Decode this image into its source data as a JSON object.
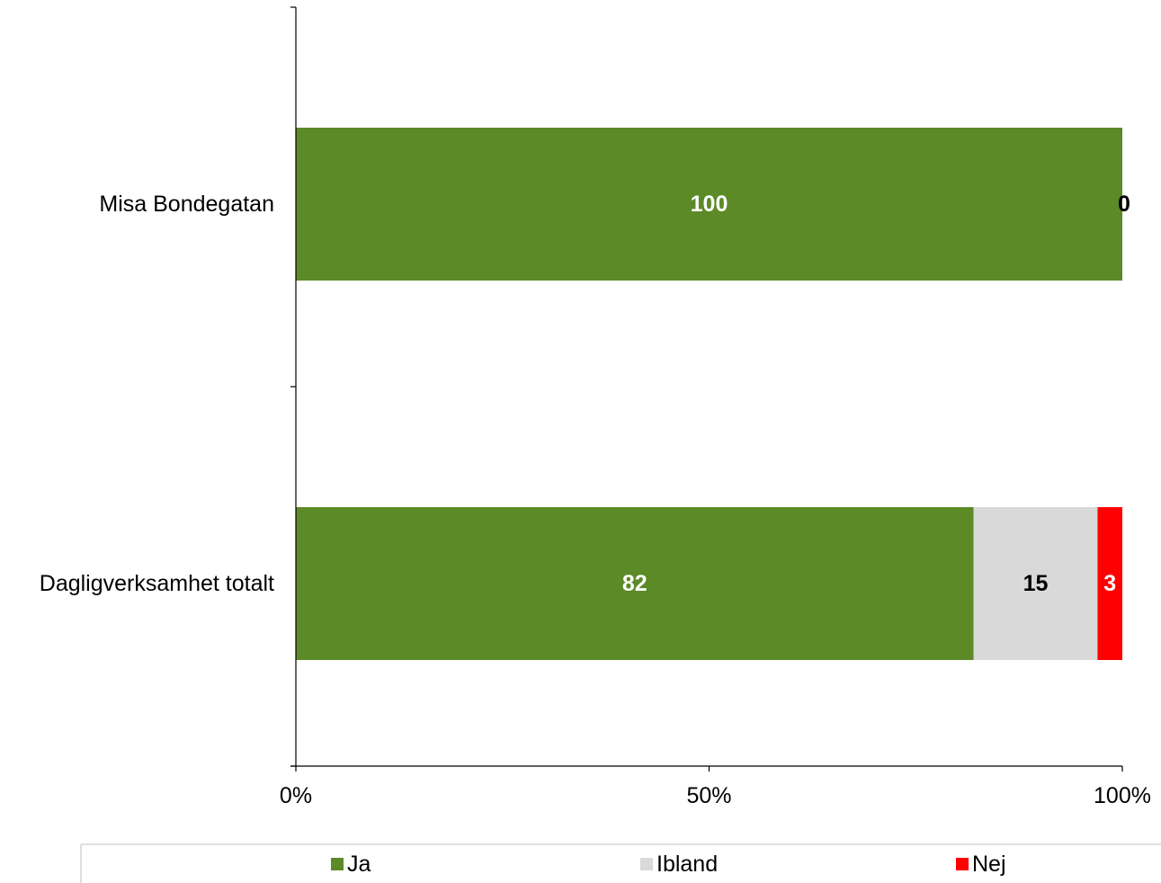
{
  "chart_data": {
    "type": "bar",
    "orientation": "horizontal",
    "stacked": true,
    "percent_stacked": true,
    "categories": [
      "Misa Bondegatan",
      "Dagligverksamhet totalt"
    ],
    "series": [
      {
        "name": "Ja",
        "color": "#5b8a27",
        "label_color": "#ffffff",
        "values": [
          100,
          82
        ]
      },
      {
        "name": "Ibland",
        "color": "#d9d9d9",
        "label_color": "#000000",
        "values": [
          0,
          15
        ]
      },
      {
        "name": "Nej",
        "color": "#ff0000",
        "label_color": "#ffffff",
        "values": [
          0,
          3
        ]
      }
    ],
    "x_ticks": [
      "0%",
      "50%",
      "100%"
    ],
    "xlim": [
      0,
      100
    ],
    "title": "",
    "xlabel": "",
    "ylabel": "",
    "grid": false,
    "legend_position": "bottom"
  }
}
